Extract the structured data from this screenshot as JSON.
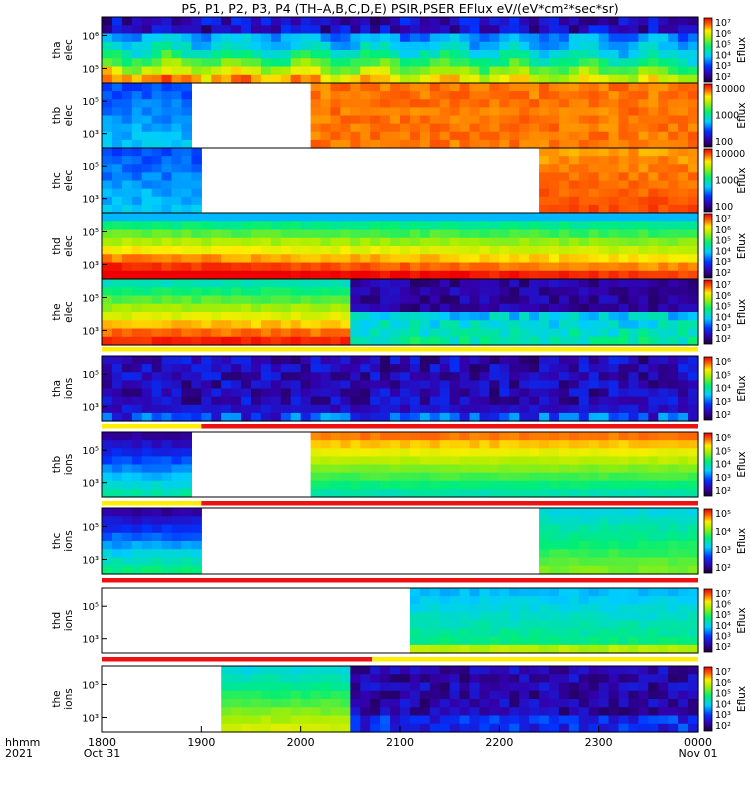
{
  "title": "P5, P1, P2, P3, P4 (TH–A,B,C,D,E) PSIR,PSER EFlux eV/(eV*cm²*sec*sr)",
  "colorbar_label": "Eflux",
  "x_corner_labels": [
    "hhmm",
    "2021"
  ],
  "chart_data": {
    "type": "heatmap",
    "x": {
      "ticks": [
        "1800",
        "1900",
        "2000",
        "2100",
        "2200",
        "2300",
        "0000"
      ],
      "tick_dates": {
        "1800": "Oct 31",
        "0000": "Nov 01"
      },
      "range_hours": [
        18,
        24
      ]
    },
    "panels": [
      {
        "id": "tha_elec",
        "ylabel": [
          "tha",
          "elec"
        ],
        "yticks": [
          "10⁶",
          "10⁵"
        ],
        "cbar_ticks": [
          "10⁷",
          "10⁶",
          "10⁵",
          "10⁴",
          "10³",
          "10²"
        ],
        "cbar_range": [
          2,
          7
        ],
        "gaps": [],
        "style": "tha_elec"
      },
      {
        "id": "thb_elec",
        "ylabel": [
          "thb",
          "elec"
        ],
        "yticks": [
          "10⁵",
          "10³"
        ],
        "cbar_ticks": [
          "10000",
          "1000",
          "100"
        ],
        "cbar_range": [
          1.8,
          4.5
        ],
        "gaps": [
          [
            18.9,
            20.05
          ]
        ],
        "style": "thb_elec"
      },
      {
        "id": "thc_elec",
        "ylabel": [
          "thc",
          "elec"
        ],
        "yticks": [
          "10⁵",
          "10³"
        ],
        "cbar_ticks": [
          "10000",
          "1000",
          "100"
        ],
        "cbar_range": [
          1.8,
          4.5
        ],
        "gaps": [
          [
            19.02,
            22.35
          ]
        ],
        "style": "thc_elec"
      },
      {
        "id": "thd_elec",
        "ylabel": [
          "thd",
          "elec"
        ],
        "yticks": [
          "10⁵",
          "10³"
        ],
        "cbar_ticks": [
          "10⁷",
          "10⁶",
          "10⁵",
          "10⁴",
          "10³",
          "10²"
        ],
        "cbar_range": [
          2,
          7
        ],
        "gaps": [],
        "style": "thd_elec"
      },
      {
        "id": "the_elec",
        "ylabel": [
          "the",
          "elec"
        ],
        "yticks": [
          "10⁵",
          "10³"
        ],
        "cbar_ticks": [
          "10⁷",
          "10⁶",
          "10⁵",
          "10⁴",
          "10³",
          "10²"
        ],
        "cbar_range": [
          2,
          7
        ],
        "gaps": [],
        "style": "the_elec"
      },
      {
        "id": "tha_ions",
        "ylabel": [
          "tha",
          "ions"
        ],
        "yticks": [
          "10⁵",
          "10³"
        ],
        "cbar_ticks": [
          "10⁶",
          "10⁵",
          "10⁴",
          "10³",
          "10²"
        ],
        "cbar_range": [
          2,
          6
        ],
        "gaps": [],
        "style": "tha_ions"
      },
      {
        "id": "thb_ions",
        "ylabel": [
          "thb",
          "ions"
        ],
        "yticks": [
          "10⁵",
          "10³"
        ],
        "cbar_ticks": [
          "10⁶",
          "10⁵",
          "10⁴",
          "10³",
          "10²"
        ],
        "cbar_range": [
          2,
          6
        ],
        "gaps": [
          [
            18.9,
            20.05
          ]
        ],
        "style": "thb_ions"
      },
      {
        "id": "thc_ions",
        "ylabel": [
          "thc",
          "ions"
        ],
        "yticks": [
          "10⁵",
          "10³"
        ],
        "cbar_ticks": [
          "10⁵",
          "10⁴",
          "10³",
          "10²"
        ],
        "cbar_range": [
          2,
          5.3
        ],
        "gaps": [
          [
            19.02,
            22.35
          ]
        ],
        "style": "thc_ions"
      },
      {
        "id": "thd_ions",
        "ylabel": [
          "thd",
          "ions"
        ],
        "yticks": [
          "10⁵",
          "10³"
        ],
        "cbar_ticks": [
          "10⁷",
          "10⁶",
          "10⁵",
          "10⁴",
          "10³",
          "10²"
        ],
        "cbar_range": [
          2,
          7
        ],
        "gaps": [
          [
            18.0,
            21.1
          ]
        ],
        "style": "thd_ions"
      },
      {
        "id": "the_ions",
        "ylabel": [
          "the",
          "ions"
        ],
        "yticks": [
          "10⁵",
          "10³"
        ],
        "cbar_ticks": [
          "10⁷",
          "10⁶",
          "10⁵",
          "10⁴",
          "10³",
          "10²"
        ],
        "cbar_range": [
          2,
          7
        ],
        "gaps": [
          [
            18.0,
            19.18
          ]
        ],
        "style": "the_ions"
      }
    ],
    "mode_bars": [
      {
        "after_panel": 4,
        "segments": [
          {
            "from": 18.0,
            "to": 24.0,
            "color": "#ffee00"
          }
        ]
      },
      {
        "after_panel": 5,
        "segments": [
          {
            "from": 18.0,
            "to": 19.0,
            "color": "#ffee00"
          },
          {
            "from": 19.0,
            "to": 24.0,
            "color": "#ee1111"
          }
        ]
      },
      {
        "after_panel": 6,
        "segments": [
          {
            "from": 18.0,
            "to": 19.0,
            "color": "#ffee00"
          },
          {
            "from": 19.0,
            "to": 24.0,
            "color": "#ee1111"
          }
        ]
      },
      {
        "after_panel": 7,
        "segments": [
          {
            "from": 18.0,
            "to": 24.0,
            "color": "#ee1111"
          }
        ]
      },
      {
        "after_panel": 8,
        "segments": [
          {
            "from": 18.0,
            "to": 20.72,
            "color": "#ee1111"
          },
          {
            "from": 20.72,
            "to": 24.0,
            "color": "#ffee00"
          }
        ]
      }
    ]
  }
}
